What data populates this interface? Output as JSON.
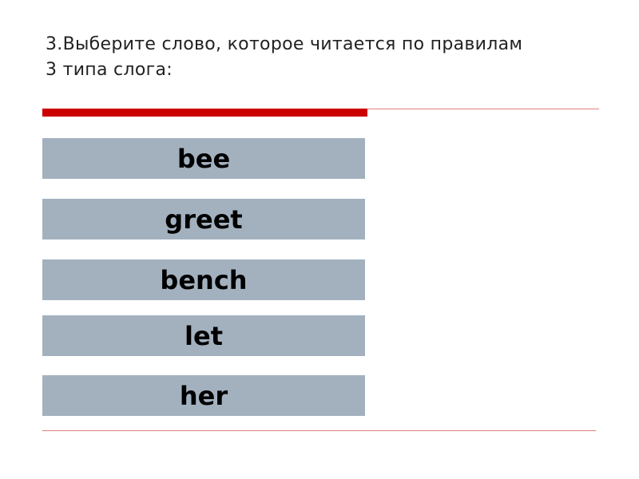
{
  "question": {
    "text": "3.Выберите слово, которое читается по правилам 3 типа слога:"
  },
  "options": [
    {
      "label": "bee"
    },
    {
      "label": "greet"
    },
    {
      "label": "bench"
    },
    {
      "label": "let"
    },
    {
      "label": "her"
    }
  ],
  "colors": {
    "accent": "#cc0000",
    "option_bg": "#a3b1bf"
  }
}
